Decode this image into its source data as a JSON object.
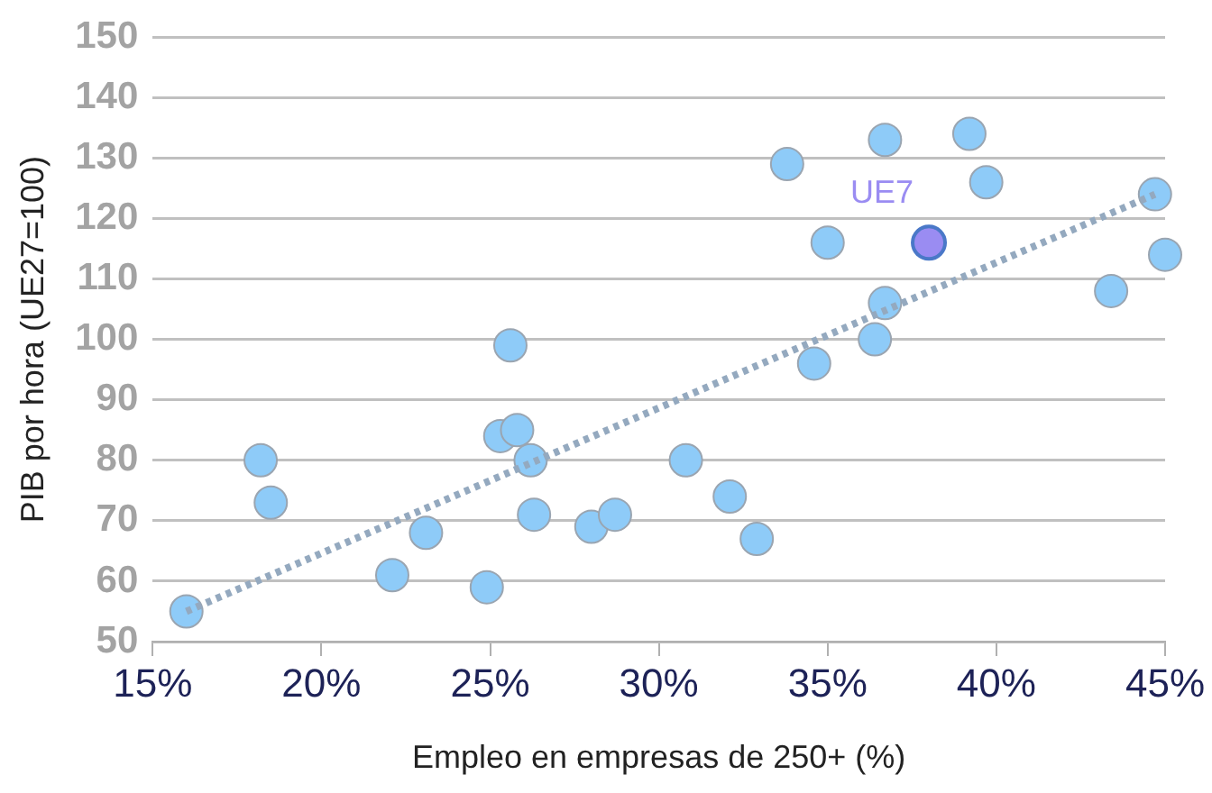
{
  "chart_data": {
    "type": "scatter",
    "xlabel": "Empleo en empresas de 250+ (%)",
    "ylabel": "PIB por hora (UE27=100)",
    "xlim": [
      15,
      45
    ],
    "xticks": [
      {
        "value": 15,
        "label": "15%"
      },
      {
        "value": 20,
        "label": "20%"
      },
      {
        "value": 25,
        "label": "25%"
      },
      {
        "value": 30,
        "label": "30%"
      },
      {
        "value": 35,
        "label": "35%"
      },
      {
        "value": 40,
        "label": "40%"
      },
      {
        "value": 45,
        "label": "45%"
      }
    ],
    "ylim": [
      50,
      150
    ],
    "yticks": [
      50,
      60,
      70,
      80,
      90,
      100,
      110,
      120,
      130,
      140,
      150
    ],
    "grid": "y",
    "legend": false,
    "marker": "circle",
    "series": [
      {
        "color": "#8ecbf8",
        "x": [
          16.0,
          18.2,
          18.5,
          22.1,
          23.1,
          24.9,
          25.3,
          25.8,
          25.6,
          26.2,
          26.3,
          28.0,
          28.7,
          30.8,
          32.1,
          32.9,
          33.8,
          36.7,
          39.2,
          39.7,
          35.0,
          36.7,
          36.4,
          34.6,
          43.4,
          44.7,
          45.0
        ],
        "values": [
          55,
          80,
          73,
          61,
          68,
          59,
          84,
          85,
          99,
          80,
          71,
          69,
          71,
          80,
          74,
          67,
          129,
          133,
          134,
          126,
          116,
          106,
          100,
          96,
          108,
          124,
          114
        ]
      },
      {
        "name": "UE7",
        "color": "#9a8cf2",
        "x": [
          38.0
        ],
        "values": [
          116
        ]
      },
      {
        "type": "line",
        "line_style": "dotted",
        "marker": "none",
        "color": "#94a9bf",
        "x": [
          16.0,
          44.7
        ],
        "values": [
          55,
          124
        ]
      }
    ]
  }
}
